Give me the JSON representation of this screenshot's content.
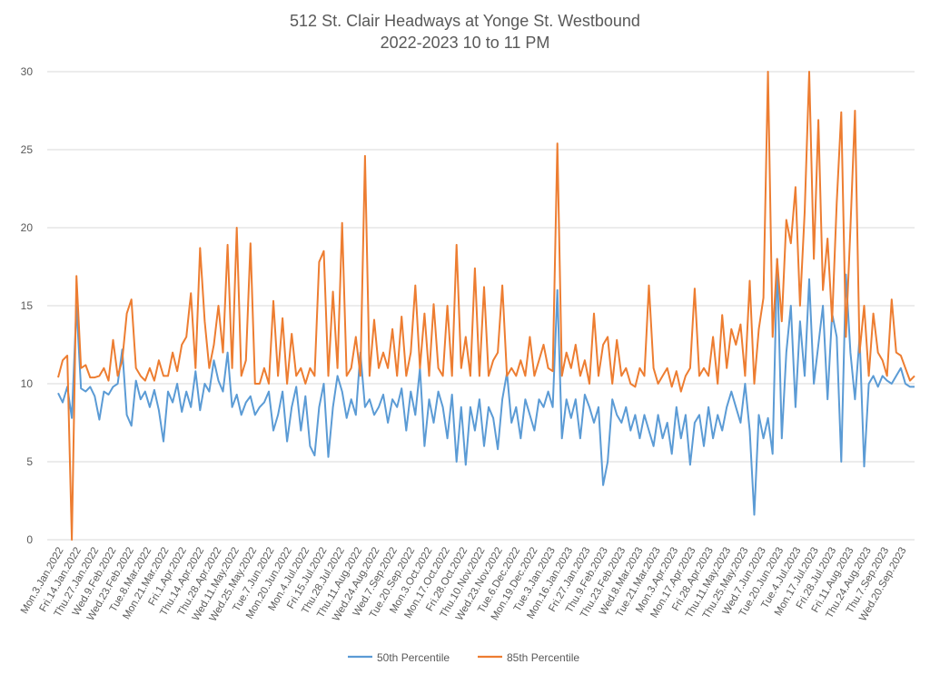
{
  "chart_data": {
    "type": "line",
    "title": [
      "512 St. Clair Headways at Yonge St. Westbound",
      "2022-2023 10 to 11 PM"
    ],
    "xlabel": "",
    "ylabel": "",
    "ylim": [
      0,
      30
    ],
    "yticks": [
      0,
      5,
      10,
      15,
      20,
      25,
      30
    ],
    "grid": true,
    "legend_position": "bottom",
    "x_tick_labels": [
      "Mon.3.Jan.2022",
      "Fri.14.Jan.2022",
      "Thu.27.Jan.2022",
      "Wed.9.Feb.2022",
      "Wed.23.Feb.2022",
      "Tue.8.Mar.2022",
      "Mon.21.Mar.2022",
      "Fri.1.Apr.2022",
      "Thu.14.Apr.2022",
      "Thu.28.Apr.2022",
      "Wed.11.May.2022",
      "Wed.25.May.2022",
      "Tue.7.Jun.2022",
      "Mon.20.Jun.2022",
      "Mon.4.Jul.2022",
      "Fri.15.Jul.2022",
      "Thu.28.Jul.2022",
      "Thu.11.Aug.2022",
      "Wed.24.Aug.2022",
      "Wed.7.Sep.2022",
      "Tue.20.Sep.2022",
      "Mon.3.Oct.2022",
      "Mon.17.Oct.2022",
      "Fri.28.Oct.2022",
      "Thu.10.Nov.2022",
      "Wed.23.Nov.2022",
      "Tue.6.Dec.2022",
      "Mon.19.Dec.2022",
      "Tue.3.Jan.2023",
      "Mon.16.Jan.2023",
      "Fri.27.Jan.2023",
      "Thu.9.Feb.2023",
      "Thu.23.Feb.2023",
      "Wed.8.Mar.2023",
      "Tue.21.Mar.2023",
      "Mon.3.Apr.2023",
      "Mon.17.Apr.2023",
      "Fri.28.Apr.2023",
      "Thu.11.May.2023",
      "Thu.25.May.2023",
      "Wed.7.Jun.2023",
      "Tue.20.Jun.2023",
      "Tue.4.Jul.2023",
      "Mon.17.Jul.2023",
      "Fri.28.Jul.2023",
      "Fri.11.Aug.2023",
      "Thu.24.Aug.2023",
      "Thu.7.Sep.2023",
      "Wed.20.Sep.2023"
    ],
    "series": [
      {
        "name": "50th Percentile",
        "color": "#5B9BD5",
        "values": [
          9.4,
          8.8,
          9.8,
          7.8,
          15,
          9.7,
          9.5,
          9.8,
          9.2,
          7.7,
          9.5,
          9.3,
          9.8,
          10,
          12.2,
          8,
          7.3,
          10.2,
          9,
          9.5,
          8.5,
          9.6,
          8.3,
          6.3,
          9.5,
          8.8,
          10,
          8.2,
          9.5,
          8.5,
          10.8,
          8.3,
          10,
          9.5,
          11.5,
          10.2,
          9.5,
          12,
          8.5,
          9.3,
          8,
          8.8,
          9.2,
          8,
          8.5,
          8.8,
          9.5,
          7,
          8,
          9.5,
          6.3,
          8.5,
          9.8,
          7,
          9.2,
          6,
          5.4,
          8.5,
          10,
          5.3,
          8.5,
          10.5,
          9.5,
          7.8,
          9,
          8,
          12,
          8.5,
          9,
          8,
          8.5,
          9.3,
          7.5,
          9,
          8.5,
          9.7,
          7,
          9.5,
          8,
          11,
          6,
          9,
          7.5,
          9.5,
          8.5,
          6.5,
          9.3,
          5,
          8.5,
          4.8,
          8.5,
          7,
          9,
          6,
          8.5,
          7.8,
          5.8,
          9,
          10.7,
          7.5,
          8.5,
          6.5,
          9,
          8,
          7,
          9,
          8.5,
          9.5,
          8.5,
          16,
          6.5,
          9,
          7.8,
          9,
          6.5,
          9.3,
          8.5,
          7.5,
          8.5,
          3.5,
          5,
          9,
          8,
          7.5,
          8.5,
          7,
          8,
          6.5,
          8,
          7,
          6,
          8,
          6.5,
          7.5,
          5.5,
          8.5,
          6.5,
          8,
          4.8,
          7.5,
          8,
          6,
          8.5,
          6.5,
          8,
          7,
          8.5,
          9.5,
          8.5,
          7.5,
          10,
          7,
          1.6,
          8,
          6.5,
          7.8,
          5.5,
          18,
          6.5,
          12,
          15,
          8.5,
          14,
          10.5,
          16.7,
          10,
          12.5,
          15,
          9,
          14.5,
          13,
          5,
          17,
          12,
          9,
          13,
          4.7,
          10,
          10.5,
          9.8,
          10.5,
          10.2,
          10,
          10.5,
          11,
          10,
          9.8,
          9.8
        ]
      },
      {
        "name": "85th Percentile",
        "color": "#ED7D31",
        "values": [
          10.4,
          11.5,
          11.8,
          0,
          16.9,
          11,
          11.2,
          10.4,
          10.4,
          10.5,
          11,
          10.2,
          12.8,
          10.5,
          11.5,
          14.5,
          15.4,
          11,
          10.5,
          10.2,
          11,
          10.2,
          11.5,
          10.5,
          10.5,
          12,
          10.8,
          12.5,
          13,
          15.8,
          11,
          18.7,
          14,
          11,
          12.5,
          15,
          12,
          18.9,
          11,
          20,
          10.5,
          11.5,
          19,
          10,
          10,
          11,
          10,
          15.3,
          10.5,
          14.2,
          10,
          13.2,
          10.5,
          11,
          10,
          11,
          10.5,
          17.8,
          18.5,
          10.5,
          15.9,
          11,
          20.3,
          10.5,
          11,
          13,
          10.5,
          24.6,
          10.5,
          14.1,
          11,
          12,
          11,
          13.5,
          10.5,
          14.3,
          10.5,
          12,
          16.3,
          11,
          14.5,
          10.5,
          15.1,
          11,
          10.5,
          15,
          10.5,
          18.9,
          11,
          13,
          10.5,
          17.4,
          10.5,
          16.2,
          10.5,
          11.5,
          12,
          16.3,
          10.5,
          11,
          10.5,
          11.5,
          10.5,
          13,
          10.5,
          11.5,
          12.5,
          11,
          10.8,
          25.4,
          10.5,
          12,
          11,
          12.5,
          10.5,
          11.5,
          10,
          14.5,
          10.5,
          12.5,
          13,
          10,
          12.8,
          10.5,
          11,
          10,
          9.8,
          11,
          10.5,
          16.3,
          11,
          10,
          10.5,
          11,
          9.8,
          10.8,
          9.5,
          10.5,
          11,
          16.1,
          10.5,
          11,
          10.5,
          13,
          10,
          14.4,
          11,
          13.5,
          12.5,
          13.8,
          10.5,
          16.6,
          10,
          13.5,
          15.5,
          30,
          13,
          18,
          14,
          20.5,
          19,
          22.6,
          15,
          21,
          30,
          18,
          26.9,
          16,
          19.3,
          14,
          21.6,
          27.4,
          13,
          20,
          27.5,
          12,
          15,
          10.5,
          14.5,
          12,
          11.5,
          10.5,
          15.4,
          12,
          11.8,
          11,
          10.2,
          10.5
        ]
      }
    ]
  }
}
